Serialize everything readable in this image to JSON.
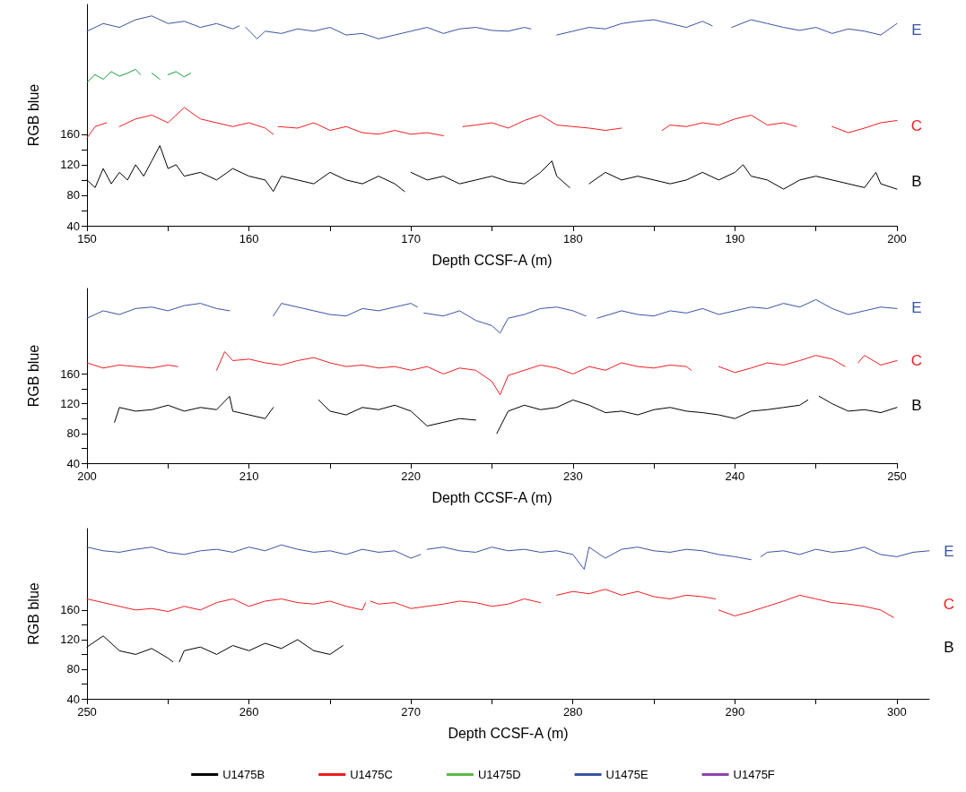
{
  "chart_data": [
    {
      "type": "line",
      "xlabel": "Depth CCSF-A (m)",
      "ylabel": "RGB blue",
      "xlim": [
        150,
        200
      ],
      "ylim": [
        40,
        330
      ],
      "xticks": [
        150,
        {
          "value": 155,
          "label": null
        },
        160,
        {
          "value": 165,
          "label": null
        },
        170,
        {
          "value": 175,
          "label": null
        },
        180,
        {
          "value": 185,
          "label": null
        },
        190,
        {
          "value": 195,
          "label": null
        },
        200
      ],
      "yticks": [
        40,
        {
          "value": 60,
          "label": null
        },
        80,
        {
          "value": 100,
          "label": null
        },
        120,
        {
          "value": 140,
          "label": null
        },
        160
      ],
      "grid": false,
      "legend": false,
      "marker": "none",
      "line_style": "solid",
      "annotations": [
        "E",
        "C",
        "B"
      ],
      "series": [
        {
          "color": "#000000",
          "x": [
            150,
            150.5,
            151,
            151.5,
            152,
            152.5,
            153,
            153.5,
            154,
            154.5,
            155,
            155.5,
            156,
            157,
            158,
            159,
            160,
            161,
            161.5,
            162,
            163,
            164,
            165,
            166,
            167,
            168,
            169,
            169.6,
            169.8,
            170,
            171,
            172,
            173,
            174,
            175,
            176,
            177,
            178,
            178.7,
            179,
            179.8,
            180.2,
            181,
            182,
            183,
            184,
            185,
            186,
            187,
            188,
            189,
            190,
            190.5,
            191,
            192,
            193,
            194,
            195,
            196,
            197,
            198,
            198.7,
            199,
            200
          ],
          "values": [
            100,
            90,
            115,
            95,
            110,
            100,
            120,
            105,
            125,
            145,
            115,
            120,
            105,
            110,
            100,
            115,
            105,
            100,
            85,
            105,
            100,
            95,
            110,
            100,
            95,
            105,
            95,
            85,
            null,
            110,
            100,
            105,
            95,
            100,
            105,
            98,
            95,
            110,
            125,
            105,
            90,
            null,
            95,
            110,
            100,
            105,
            100,
            95,
            100,
            110,
            100,
            110,
            120,
            105,
            100,
            88,
            100,
            105,
            100,
            95,
            90,
            110,
            95,
            88
          ]
        },
        {
          "color": "#ee1d23",
          "x": [
            150,
            150.5,
            151.2,
            151.6,
            152,
            153,
            154,
            155,
            156,
            157,
            158,
            159,
            160,
            161,
            161.5,
            161.65,
            161.8,
            163,
            164,
            165,
            166,
            167,
            168,
            169,
            170,
            171,
            172,
            172.6,
            173.2,
            174,
            175,
            176,
            177,
            178,
            179,
            180,
            181,
            182,
            183,
            184,
            185.5,
            186,
            187,
            188,
            189,
            190,
            191,
            192,
            193,
            193.8,
            195,
            196,
            197,
            198,
            199,
            200
          ],
          "values": [
            155,
            170,
            175,
            null,
            170,
            180,
            185,
            175,
            195,
            180,
            175,
            170,
            175,
            168,
            160,
            null,
            170,
            168,
            175,
            165,
            170,
            162,
            160,
            165,
            160,
            162,
            158,
            null,
            170,
            172,
            175,
            168,
            178,
            185,
            172,
            170,
            168,
            165,
            168,
            null,
            165,
            172,
            170,
            175,
            172,
            180,
            185,
            172,
            175,
            170,
            null,
            170,
            162,
            168,
            175,
            178
          ]
        },
        {
          "color": "#1c9a3c",
          "x": [
            150,
            150.5,
            151,
            151.5,
            152,
            152.5,
            153,
            153.3,
            153.6,
            154,
            154.5,
            154.7,
            155,
            155.5,
            156,
            156.4
          ],
          "values": [
            228,
            238,
            232,
            242,
            236,
            240,
            245,
            238,
            null,
            240,
            232,
            null,
            238,
            242,
            235,
            240
          ]
        },
        {
          "color": "#3953a4",
          "x": [
            150,
            151,
            152,
            153,
            154,
            155,
            156,
            157,
            158,
            159,
            159.4,
            159.6,
            159.8,
            160.5,
            161,
            162,
            163,
            164,
            165,
            166,
            167,
            168,
            169,
            170,
            171,
            172,
            173,
            174,
            175,
            176,
            177,
            177.4,
            178.2,
            179,
            180,
            181,
            182,
            183,
            184,
            185,
            186,
            187,
            188,
            188.6,
            189.2,
            189.8,
            191,
            192,
            193,
            194,
            195,
            196,
            197,
            198,
            199,
            200
          ],
          "values": [
            295,
            305,
            300,
            310,
            315,
            305,
            308,
            300,
            305,
            298,
            302,
            null,
            300,
            285,
            295,
            292,
            298,
            295,
            300,
            290,
            292,
            285,
            290,
            295,
            300,
            292,
            298,
            300,
            296,
            295,
            300,
            298,
            null,
            290,
            295,
            300,
            298,
            305,
            308,
            310,
            305,
            300,
            308,
            302,
            null,
            300,
            310,
            305,
            300,
            296,
            300,
            292,
            298,
            295,
            290,
            305
          ]
        }
      ]
    },
    {
      "type": "line",
      "xlabel": "Depth CCSF-A (m)",
      "ylabel": "RGB blue",
      "xlim": [
        200,
        250
      ],
      "ylim": [
        40,
        275
      ],
      "xticks": [
        200,
        {
          "value": 205,
          "label": null
        },
        210,
        {
          "value": 215,
          "label": null
        },
        220,
        {
          "value": 225,
          "label": null
        },
        230,
        {
          "value": 235,
          "label": null
        },
        240,
        {
          "value": 245,
          "label": null
        },
        250
      ],
      "yticks": [
        40,
        {
          "value": 60,
          "label": null
        },
        80,
        {
          "value": 100,
          "label": null
        },
        120,
        {
          "value": 140,
          "label": null
        },
        160
      ],
      "grid": false,
      "legend": false,
      "marker": "none",
      "line_style": "solid",
      "annotations": [
        "E",
        "C",
        "B"
      ],
      "series": [
        {
          "color": "#000000",
          "x": [
            201.7,
            202,
            203,
            204,
            205,
            206,
            207,
            208,
            208.8,
            209,
            210,
            211,
            211.5,
            213,
            214.3,
            215,
            216,
            217,
            218,
            219,
            220,
            221,
            222,
            223,
            224,
            224.6,
            225.3,
            226,
            227,
            228,
            229,
            230,
            231,
            232,
            233,
            234,
            235,
            236,
            237,
            238,
            239,
            240,
            241,
            242,
            243,
            244,
            244.5,
            244.8,
            245.2,
            246,
            247,
            248,
            249,
            250
          ],
          "values": [
            95,
            115,
            110,
            112,
            118,
            110,
            115,
            112,
            130,
            110,
            105,
            100,
            115,
            null,
            125,
            110,
            105,
            115,
            112,
            118,
            110,
            90,
            95,
            100,
            98,
            null,
            80,
            110,
            118,
            112,
            115,
            125,
            118,
            108,
            110,
            105,
            112,
            115,
            110,
            108,
            105,
            100,
            110,
            112,
            115,
            118,
            125,
            null,
            130,
            120,
            110,
            112,
            108,
            115
          ]
        },
        {
          "color": "#ee1d23",
          "x": [
            200,
            201,
            202,
            203,
            204,
            205,
            205.6,
            207,
            208,
            208.5,
            209,
            210,
            211,
            212,
            213,
            214,
            215,
            216,
            217,
            218,
            219,
            220,
            221,
            222,
            223,
            224,
            225,
            225.5,
            226,
            227,
            228,
            229,
            230,
            231,
            232,
            233,
            234,
            235,
            236,
            237,
            237.3,
            238.2,
            239,
            240,
            241,
            242,
            243,
            244,
            245,
            246,
            246.8,
            247.2,
            247.6,
            248,
            249,
            250
          ],
          "values": [
            175,
            168,
            172,
            170,
            168,
            172,
            170,
            null,
            165,
            190,
            178,
            180,
            175,
            172,
            178,
            182,
            175,
            170,
            172,
            168,
            170,
            165,
            170,
            160,
            168,
            165,
            150,
            132,
            158,
            165,
            172,
            168,
            160,
            170,
            165,
            175,
            170,
            168,
            172,
            170,
            165,
            null,
            170,
            162,
            168,
            175,
            172,
            178,
            185,
            180,
            170,
            null,
            175,
            185,
            172,
            178
          ]
        },
        {
          "color": "#3953a4",
          "x": [
            200,
            201,
            202,
            203,
            204,
            205,
            206,
            207,
            208,
            208.8,
            210,
            211.5,
            212,
            213,
            214,
            215,
            216,
            217,
            218,
            219,
            220,
            220.4,
            220.6,
            220.8,
            222,
            223,
            224,
            225,
            225.5,
            226,
            227,
            228,
            229,
            230,
            230.8,
            231.2,
            231.5,
            233,
            234,
            235,
            236,
            237,
            238,
            239,
            240,
            241,
            242,
            243,
            244,
            245,
            246,
            247,
            248,
            249,
            250
          ],
          "values": [
            235,
            245,
            240,
            248,
            250,
            245,
            252,
            255,
            248,
            245,
            null,
            238,
            255,
            250,
            245,
            240,
            238,
            248,
            245,
            250,
            255,
            250,
            null,
            242,
            238,
            245,
            232,
            225,
            215,
            235,
            240,
            248,
            250,
            245,
            238,
            null,
            235,
            245,
            240,
            238,
            245,
            242,
            248,
            240,
            245,
            250,
            248,
            255,
            250,
            260,
            248,
            240,
            245,
            250,
            248
          ]
        }
      ]
    },
    {
      "type": "line",
      "xlabel": "Depth CCSF-A (m)",
      "ylabel": "RGB blue",
      "xlim": [
        250,
        302
      ],
      "ylim": [
        40,
        270
      ],
      "xticks": [
        250,
        {
          "value": 255,
          "label": null
        },
        260,
        {
          "value": 265,
          "label": null
        },
        270,
        {
          "value": 275,
          "label": null
        },
        280,
        {
          "value": 285,
          "label": null
        },
        290,
        {
          "value": 295,
          "label": null
        },
        300
      ],
      "yticks": [
        40,
        {
          "value": 60,
          "label": null
        },
        80,
        {
          "value": 100,
          "label": null
        },
        120,
        {
          "value": 140,
          "label": null
        },
        160
      ],
      "grid": false,
      "legend": "bottom",
      "marker": "none",
      "line_style": "solid",
      "annotations": [
        "E",
        "C",
        "B"
      ],
      "series": [
        {
          "name": "U1475B",
          "color": "#000000",
          "x": [
            250,
            251,
            252,
            253,
            254,
            255,
            255.3,
            255.5,
            255.7,
            256,
            257,
            258,
            259,
            260,
            261,
            262,
            263,
            264,
            265,
            265.8
          ],
          "values": [
            110,
            125,
            105,
            100,
            108,
            95,
            90,
            null,
            90,
            105,
            110,
            100,
            112,
            105,
            115,
            108,
            120,
            105,
            100,
            112
          ]
        },
        {
          "name": "U1475C",
          "color": "#ee1d23",
          "x": [
            250,
            251,
            252,
            253,
            254,
            255,
            256,
            257,
            258,
            259,
            260,
            261,
            262,
            263,
            264,
            265,
            266,
            267,
            267.2,
            267.35,
            267.5,
            268,
            269,
            270,
            271,
            272,
            273,
            274,
            275,
            276,
            277,
            278,
            278.5,
            279,
            280,
            281,
            282,
            283,
            284,
            285,
            286,
            287,
            288,
            288.8,
            288.9,
            289,
            290,
            291,
            292,
            293,
            294,
            295,
            296,
            297,
            298,
            299,
            299.8
          ],
          "values": [
            175,
            170,
            165,
            160,
            162,
            158,
            165,
            160,
            170,
            175,
            165,
            172,
            175,
            170,
            168,
            172,
            165,
            160,
            170,
            null,
            172,
            168,
            170,
            162,
            165,
            168,
            172,
            170,
            165,
            168,
            175,
            170,
            null,
            180,
            185,
            182,
            188,
            180,
            185,
            178,
            175,
            180,
            178,
            175,
            null,
            160,
            152,
            158,
            165,
            172,
            180,
            175,
            170,
            168,
            165,
            160,
            150
          ]
        },
        {
          "name": "U1475D",
          "color": "#5cb946"
        },
        {
          "name": "U1475E",
          "color": "#3953a4",
          "x": [
            250,
            251,
            252,
            253,
            254,
            255,
            256,
            257,
            258,
            259,
            260,
            261,
            262,
            263,
            264,
            265,
            266,
            267,
            268,
            269,
            270,
            270.6,
            270.8,
            271,
            272,
            273,
            274,
            275,
            276,
            277,
            278,
            279,
            280,
            280.7,
            281,
            282,
            283,
            284,
            285,
            286,
            287,
            288,
            289,
            290,
            291,
            291.4,
            291.6,
            292,
            293,
            294,
            295,
            296,
            297,
            298,
            299,
            300,
            301,
            302
          ],
          "values": [
            245,
            240,
            238,
            242,
            245,
            238,
            235,
            240,
            242,
            238,
            245,
            240,
            248,
            242,
            238,
            240,
            235,
            242,
            238,
            240,
            230,
            235,
            null,
            242,
            245,
            240,
            238,
            245,
            240,
            242,
            238,
            240,
            235,
            215,
            245,
            230,
            242,
            245,
            240,
            238,
            242,
            240,
            235,
            232,
            228,
            null,
            232,
            238,
            240,
            235,
            242,
            238,
            240,
            245,
            235,
            232,
            238,
            240
          ]
        },
        {
          "name": "U1475F",
          "color": "#8e44ad"
        }
      ]
    }
  ]
}
